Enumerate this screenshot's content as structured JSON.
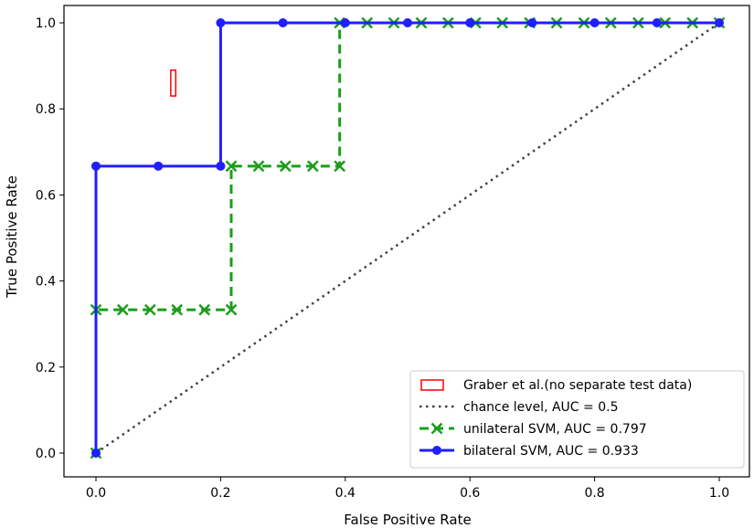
{
  "chart_data": {
    "type": "line",
    "title": "",
    "xlabel": "False Positive Rate",
    "ylabel": "True Positive Rate",
    "xlim": [
      0.0,
      1.0
    ],
    "ylim": [
      0.0,
      1.0
    ],
    "xticks": [
      "0.0",
      "0.2",
      "0.4",
      "0.6",
      "0.8",
      "1.0"
    ],
    "yticks": [
      "0.0",
      "0.2",
      "0.4",
      "0.6",
      "0.8",
      "1.0"
    ],
    "grid": false,
    "legend_position": "lower-right",
    "series": [
      {
        "name": "bilateral SVM, AUC = 0.933",
        "color": "#1f1fff",
        "style": "solid",
        "marker": "circle",
        "x": [
          0.0,
          0.0,
          0.1,
          0.2,
          0.2,
          0.3,
          0.4,
          0.5,
          0.6,
          0.7,
          0.8,
          0.9,
          1.0
        ],
        "y": [
          0.0,
          0.667,
          0.667,
          0.667,
          1.0,
          1.0,
          1.0,
          1.0,
          1.0,
          1.0,
          1.0,
          1.0,
          1.0
        ]
      },
      {
        "name": "unilateral SVM, AUC = 0.797",
        "color": "#1a9e1a",
        "style": "dashed",
        "marker": "x",
        "x": [
          0.0,
          0.0,
          0.043,
          0.087,
          0.13,
          0.174,
          0.217,
          0.217,
          0.261,
          0.304,
          0.348,
          0.391,
          0.391,
          0.435,
          0.478,
          0.522,
          0.565,
          0.609,
          0.652,
          0.696,
          0.739,
          0.783,
          0.826,
          0.87,
          0.913,
          0.957,
          1.0
        ],
        "y": [
          0.0,
          0.333,
          0.333,
          0.333,
          0.333,
          0.333,
          0.333,
          0.667,
          0.667,
          0.667,
          0.667,
          0.667,
          1.0,
          1.0,
          1.0,
          1.0,
          1.0,
          1.0,
          1.0,
          1.0,
          1.0,
          1.0,
          1.0,
          1.0,
          1.0,
          1.0,
          1.0
        ]
      },
      {
        "name": "chance level, AUC = 0.5",
        "color": "#444444",
        "style": "dotted",
        "marker": "none",
        "x": [
          0.0,
          1.0
        ],
        "y": [
          0.0,
          1.0
        ]
      }
    ],
    "annotations": [
      {
        "name": "Graber et al.(no separate test data)",
        "type": "rectangle",
        "color": "#ff0000",
        "x_range": [
          0.12,
          0.128
        ],
        "y_range": [
          0.83,
          0.89
        ]
      }
    ]
  }
}
